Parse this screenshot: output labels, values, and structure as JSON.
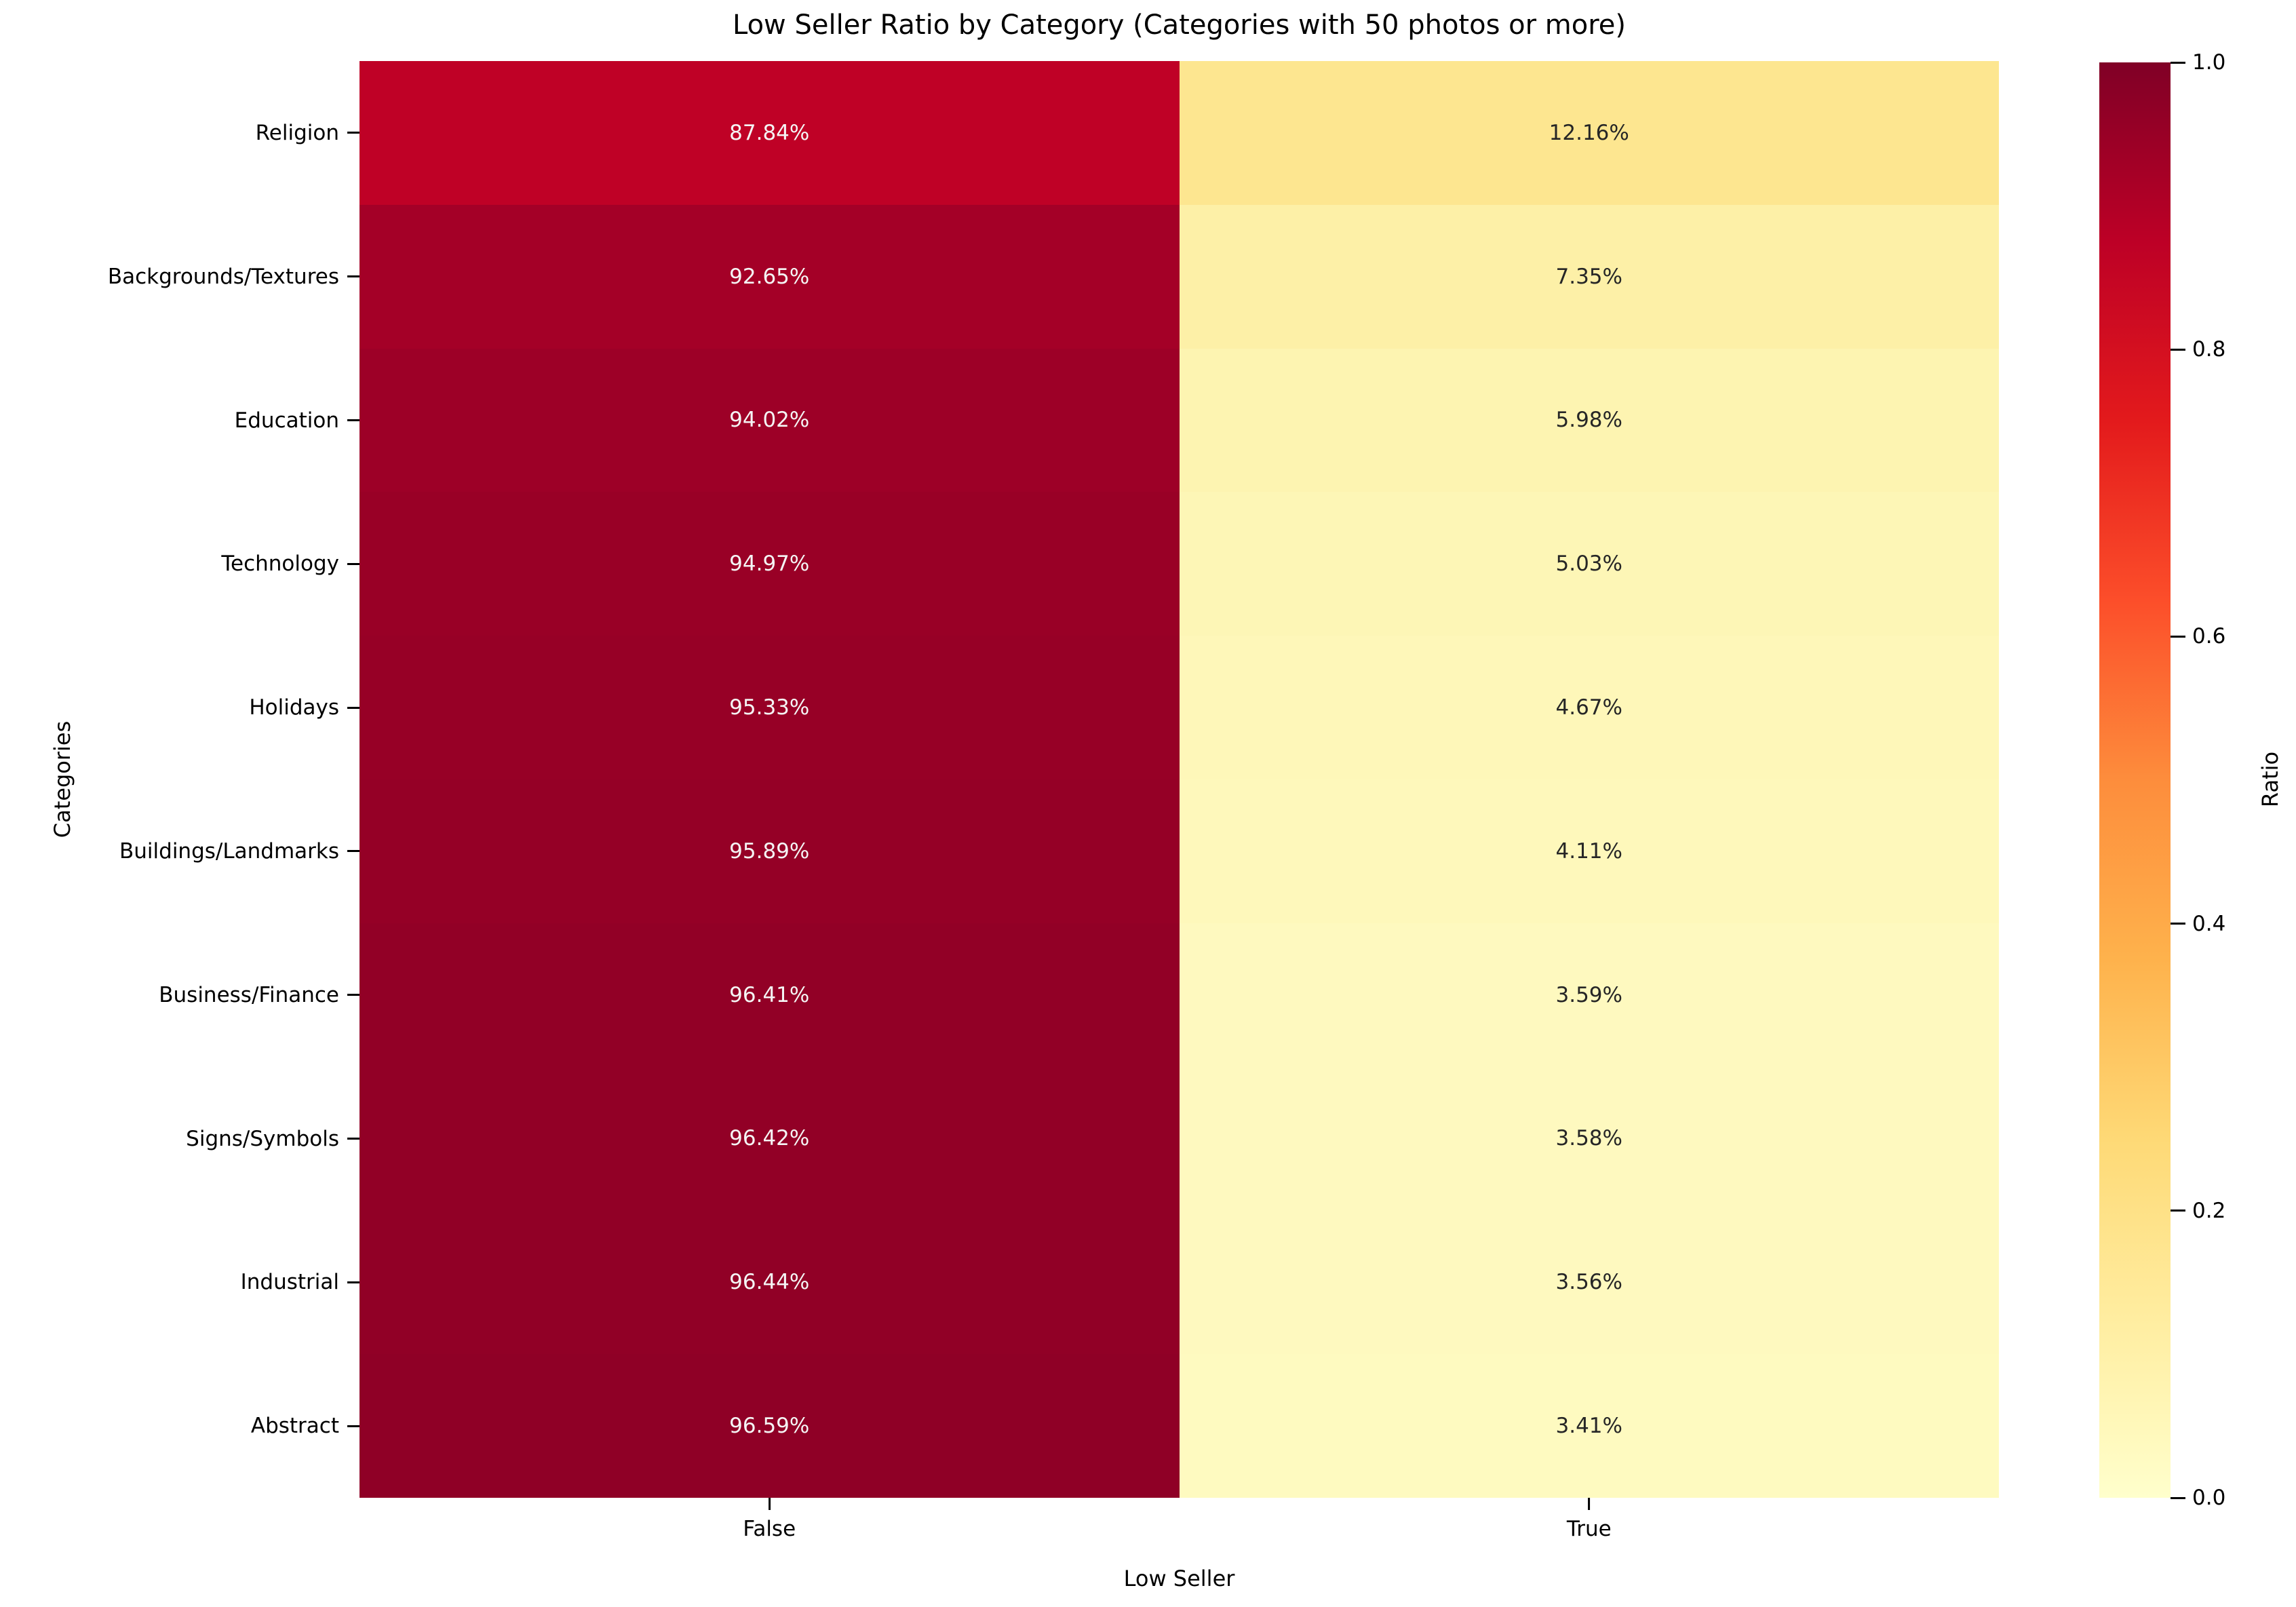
{
  "chart_data": {
    "type": "heatmap",
    "title": "Low Seller Ratio by Category (Categories with 50 photos or more)",
    "xlabel": "Low Seller",
    "ylabel": "Categories",
    "x_categories": [
      "False",
      "True"
    ],
    "y_categories": [
      "Religion",
      "Backgrounds/Textures",
      "Education",
      "Technology",
      "Holidays",
      "Buildings/Landmarks",
      "Business/Finance",
      "Signs/Symbols",
      "Industrial",
      "Abstract"
    ],
    "values": [
      [
        0.8784,
        0.1216
      ],
      [
        0.9265,
        0.0735
      ],
      [
        0.9402,
        0.0598
      ],
      [
        0.9497,
        0.0503
      ],
      [
        0.9533,
        0.0467
      ],
      [
        0.9589,
        0.0411
      ],
      [
        0.9641,
        0.0359
      ],
      [
        0.9642,
        0.0358
      ],
      [
        0.9644,
        0.0356
      ],
      [
        0.9659,
        0.0341
      ]
    ],
    "cell_labels": [
      [
        "87.84%",
        "12.16%"
      ],
      [
        "92.65%",
        "7.35%"
      ],
      [
        "94.02%",
        "5.98%"
      ],
      [
        "94.97%",
        "5.03%"
      ],
      [
        "95.33%",
        "4.67%"
      ],
      [
        "95.89%",
        "4.11%"
      ],
      [
        "96.41%",
        "3.59%"
      ],
      [
        "96.42%",
        "3.58%"
      ],
      [
        "96.44%",
        "3.56%"
      ],
      [
        "96.59%",
        "3.41%"
      ]
    ],
    "cell_colors": [
      [
        "#bf0126",
        "#fde690"
      ],
      [
        "#a40027",
        "#fdf0a7"
      ],
      [
        "#9d0027",
        "#fdf4b1"
      ],
      [
        "#990026",
        "#fdf6b6"
      ],
      [
        "#970026",
        "#fef7b9"
      ],
      [
        "#950026",
        "#fef8bb"
      ],
      [
        "#920026",
        "#fef9bf"
      ],
      [
        "#920026",
        "#fef9bf"
      ],
      [
        "#910026",
        "#fef9bf"
      ],
      [
        "#8f0026",
        "#fefac0"
      ]
    ],
    "annotation_color_on_dark": "#f5f5f5",
    "annotation_color_on_light": "#262626",
    "colormap": "YlOrRd",
    "grid": false,
    "colorbar": {
      "label": "Ratio",
      "ticks": [
        "1.0",
        "0.8",
        "0.6",
        "0.4",
        "0.2",
        "0.0"
      ],
      "min": 0.0,
      "max": 1.0
    }
  }
}
